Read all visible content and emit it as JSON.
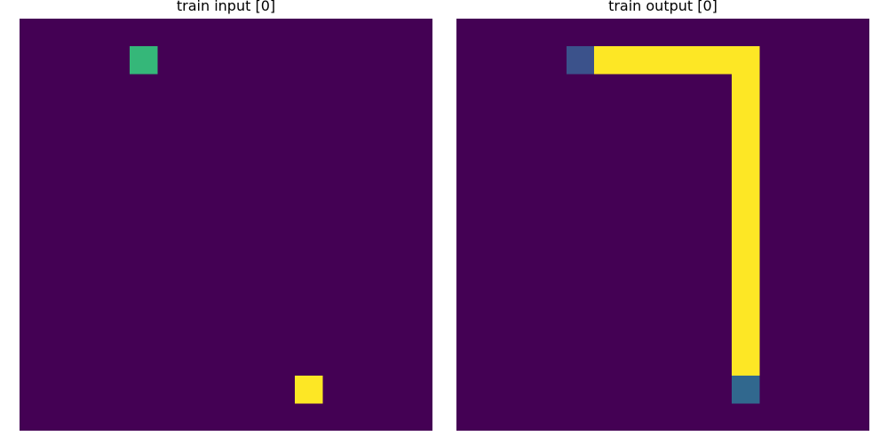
{
  "panels": [
    {
      "title": "train input [0]",
      "rows": 15,
      "cols": 15,
      "background": "#440154",
      "cells": [
        {
          "row": 1,
          "col": 4,
          "color": "#35b779"
        },
        {
          "row": 13,
          "col": 10,
          "color": "#fde725"
        }
      ]
    },
    {
      "title": "train output [0]",
      "rows": 15,
      "cols": 15,
      "background": "#440154",
      "cells": [
        {
          "row": 1,
          "col": 4,
          "color": "#3b528b"
        },
        {
          "row": 1,
          "col": 5,
          "color": "#fde725"
        },
        {
          "row": 1,
          "col": 6,
          "color": "#fde725"
        },
        {
          "row": 1,
          "col": 7,
          "color": "#fde725"
        },
        {
          "row": 1,
          "col": 8,
          "color": "#fde725"
        },
        {
          "row": 1,
          "col": 9,
          "color": "#fde725"
        },
        {
          "row": 1,
          "col": 10,
          "color": "#fde725"
        },
        {
          "row": 2,
          "col": 10,
          "color": "#fde725"
        },
        {
          "row": 3,
          "col": 10,
          "color": "#fde725"
        },
        {
          "row": 4,
          "col": 10,
          "color": "#fde725"
        },
        {
          "row": 5,
          "col": 10,
          "color": "#fde725"
        },
        {
          "row": 6,
          "col": 10,
          "color": "#fde725"
        },
        {
          "row": 7,
          "col": 10,
          "color": "#fde725"
        },
        {
          "row": 8,
          "col": 10,
          "color": "#fde725"
        },
        {
          "row": 9,
          "col": 10,
          "color": "#fde725"
        },
        {
          "row": 10,
          "col": 10,
          "color": "#fde725"
        },
        {
          "row": 11,
          "col": 10,
          "color": "#fde725"
        },
        {
          "row": 12,
          "col": 10,
          "color": "#fde725"
        },
        {
          "row": 13,
          "col": 10,
          "color": "#31688e"
        }
      ]
    }
  ]
}
